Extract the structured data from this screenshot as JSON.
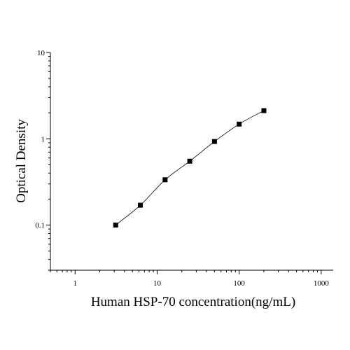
{
  "chart_data": {
    "type": "scatter",
    "xlabel": "Human HSP-70 concentration(ng/mL)",
    "ylabel": "Optical Density",
    "x_scale": "log",
    "y_scale": "log",
    "xlim": [
      0.5,
      1400
    ],
    "ylim": [
      0.03,
      10
    ],
    "x_ticks": [
      {
        "value": 1,
        "label": "1"
      },
      {
        "value": 10,
        "label": "10"
      },
      {
        "value": 100,
        "label": "100"
      },
      {
        "value": 1000,
        "label": "1000"
      }
    ],
    "y_ticks": [
      {
        "value": 0.1,
        "label": "0.1"
      },
      {
        "value": 1,
        "label": "1"
      },
      {
        "value": 10,
        "label": "10"
      }
    ],
    "grid": false,
    "legend": "none",
    "series": [
      {
        "points": [
          {
            "x": 3.125,
            "y": 0.1
          },
          {
            "x": 6.25,
            "y": 0.17
          },
          {
            "x": 12.5,
            "y": 0.335
          },
          {
            "x": 25,
            "y": 0.55
          },
          {
            "x": 50,
            "y": 0.93
          },
          {
            "x": 100,
            "y": 1.48
          },
          {
            "x": 200,
            "y": 2.12
          }
        ],
        "marker": "square",
        "color": "#000000",
        "fit_line": true
      }
    ]
  }
}
